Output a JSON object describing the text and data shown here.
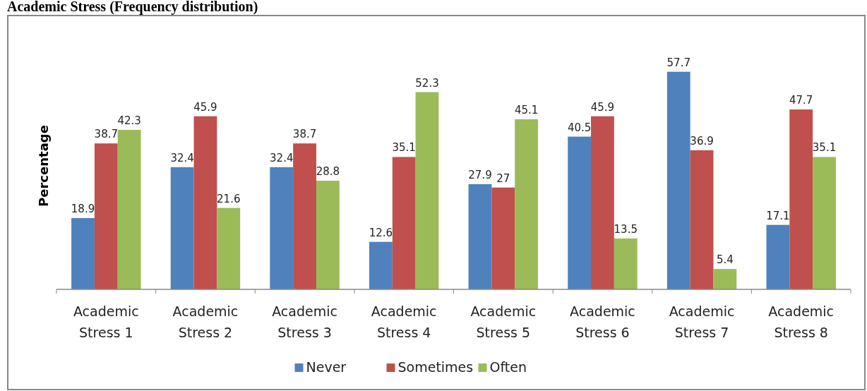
{
  "chart_data": {
    "type": "bar",
    "title": "Academic Stress (Frequency distribution)",
    "ylabel": "Percentage",
    "categories": [
      "Academic Stress 1",
      "Academic Stress 2",
      "Academic Stress 3",
      "Academic Stress 4",
      "Academic Stress 5",
      "Academic Stress 6",
      "Academic Stress 7",
      "Academic Stress 8"
    ],
    "series": [
      {
        "name": "Never",
        "color": "#4f81bd",
        "values": [
          18.9,
          32.4,
          32.4,
          12.6,
          27.9,
          40.5,
          57.7,
          17.1
        ]
      },
      {
        "name": "Sometimes",
        "color": "#c0504d",
        "values": [
          38.7,
          45.9,
          38.7,
          35.1,
          27,
          45.9,
          36.9,
          47.7
        ]
      },
      {
        "name": "Often",
        "color": "#9bbb59",
        "values": [
          42.3,
          21.6,
          28.8,
          52.3,
          45.1,
          13.5,
          5.4,
          35.1
        ]
      }
    ],
    "tick_labels": "x",
    "data_labels": true,
    "legend": "bottom"
  }
}
